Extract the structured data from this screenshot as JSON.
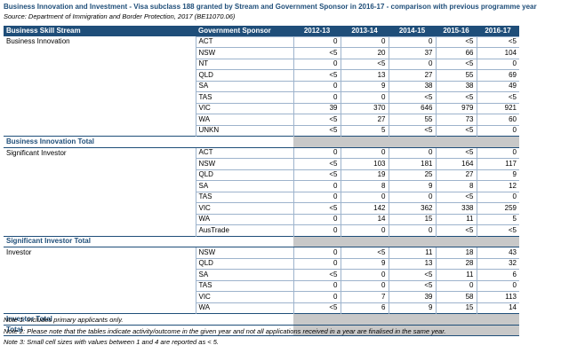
{
  "header": {
    "title": "Business Innovation and Investment - Visa subclass 188 granted by Stream and Government Sponsor in 2016-17 - comparison with previous programme year",
    "source": "Source: Department of Immigration and Border Protection, 2017 (BE11070.06)"
  },
  "table": {
    "columns": [
      "Business Skill Stream",
      "Government Sponsor",
      "2012-13",
      "2013-14",
      "2014-15",
      "2015-16",
      "2016-17"
    ],
    "rows": [
      {
        "stream": "Business Innovation",
        "sponsor": "ACT",
        "values": [
          0,
          0,
          0,
          "<5",
          "<5"
        ]
      },
      {
        "sponsor": "NSW",
        "values": [
          "<5",
          20,
          37,
          66,
          104
        ]
      },
      {
        "sponsor": "NT",
        "values": [
          0,
          "<5",
          0,
          "<5",
          0
        ]
      },
      {
        "sponsor": "QLD",
        "values": [
          "<5",
          13,
          27,
          55,
          69
        ]
      },
      {
        "sponsor": "SA",
        "values": [
          0,
          9,
          38,
          38,
          49
        ]
      },
      {
        "sponsor": "TAS",
        "values": [
          0,
          0,
          "<5",
          "<5",
          "<5"
        ]
      },
      {
        "sponsor": "VIC",
        "values": [
          39,
          370,
          646,
          979,
          921
        ]
      },
      {
        "sponsor": "WA",
        "values": [
          "<5",
          27,
          55,
          73,
          60
        ]
      },
      {
        "sponsor": "UNKN",
        "values": [
          "<5",
          5,
          "<5",
          "<5",
          0
        ]
      },
      {
        "total": "Business Innovation Total"
      },
      {
        "stream": "Significant Investor",
        "sponsor": "ACT",
        "values": [
          0,
          0,
          0,
          "<5",
          0
        ]
      },
      {
        "sponsor": "NSW",
        "values": [
          "<5",
          103,
          181,
          164,
          117
        ]
      },
      {
        "sponsor": "QLD",
        "values": [
          "<5",
          19,
          25,
          27,
          9
        ]
      },
      {
        "sponsor": "SA",
        "values": [
          0,
          8,
          9,
          8,
          12
        ]
      },
      {
        "sponsor": "TAS",
        "values": [
          0,
          0,
          0,
          "<5",
          0
        ]
      },
      {
        "sponsor": "VIC",
        "values": [
          "<5",
          142,
          362,
          338,
          259
        ]
      },
      {
        "sponsor": "WA",
        "values": [
          0,
          14,
          15,
          11,
          5
        ]
      },
      {
        "sponsor": "AusTrade",
        "values": [
          0,
          0,
          0,
          "<5",
          "<5"
        ]
      },
      {
        "total": "Significant Investor Total"
      },
      {
        "stream": "Investor",
        "sponsor": "NSW",
        "values": [
          0,
          "<5",
          11,
          18,
          43
        ]
      },
      {
        "sponsor": "QLD",
        "values": [
          0,
          9,
          13,
          28,
          32
        ]
      },
      {
        "sponsor": "SA",
        "values": [
          "<5",
          0,
          "<5",
          11,
          6
        ]
      },
      {
        "sponsor": "TAS",
        "values": [
          0,
          0,
          "<5",
          0,
          0
        ]
      },
      {
        "sponsor": "VIC",
        "values": [
          0,
          7,
          39,
          58,
          113
        ]
      },
      {
        "sponsor": "WA",
        "values": [
          "<5",
          6,
          9,
          15,
          14
        ]
      },
      {
        "total": "Investor Total"
      },
      {
        "total": "Total"
      }
    ]
  },
  "notes": [
    "Note 1: Includes primary applicants only.",
    "Note 2: Please note that the tables indicate activity/outcome in the given year and not all applications received in a year are finalised in the same year.",
    "Note 3: Small cell sizes with values between 1 and 4 are reported as < 5."
  ]
}
